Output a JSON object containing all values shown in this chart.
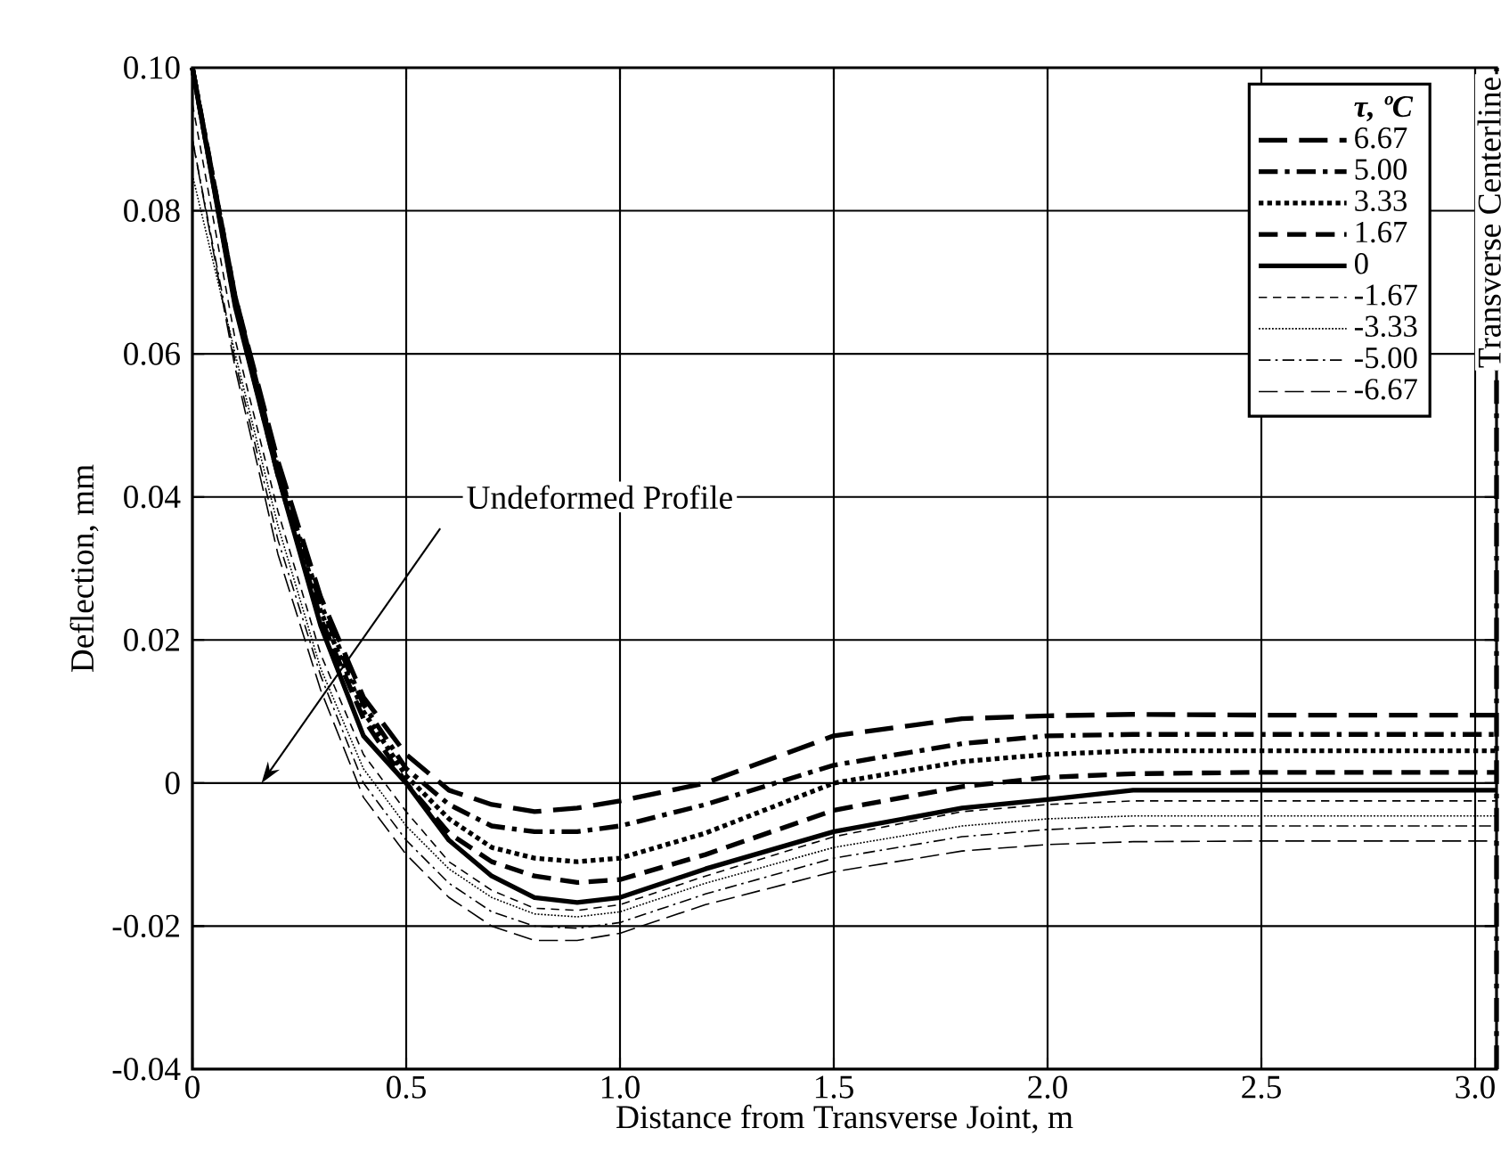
{
  "chart_data": {
    "type": "line",
    "xlabel": "Distance from Transverse Joint, m",
    "ylabel": "Deflection, mm",
    "legend_title": "τ, ºC",
    "x": [
      0,
      0.1,
      0.2,
      0.3,
      0.4,
      0.5,
      0.6,
      0.7,
      0.8,
      0.9,
      1.0,
      1.2,
      1.5,
      1.8,
      2.0,
      2.2,
      2.5,
      3.0,
      3.05
    ],
    "series": [
      {
        "name": "6.67",
        "color": "#000000",
        "line_style": "long dashed",
        "values": [
          0.1,
          0.068,
          0.045,
          0.026,
          0.012,
          0.004,
          -0.001,
          -0.003,
          -0.004,
          -0.0035,
          -0.0025,
          0.0,
          0.0066,
          0.009,
          0.0094,
          0.0096,
          0.0095,
          0.0095,
          0.0095
        ]
      },
      {
        "name": "5.00",
        "color": "#000000",
        "line_style": "dash dot",
        "values": [
          0.1,
          0.068,
          0.044,
          0.025,
          0.011,
          0.002,
          -0.003,
          -0.006,
          -0.0068,
          -0.0068,
          -0.006,
          -0.003,
          0.0025,
          0.0055,
          0.0066,
          0.0068,
          0.0068,
          0.0068,
          0.0068
        ]
      },
      {
        "name": "3.33",
        "color": "#000000",
        "line_style": "dotted",
        "values": [
          0.1,
          0.067,
          0.044,
          0.024,
          0.01,
          0.001,
          -0.005,
          -0.009,
          -0.0105,
          -0.011,
          -0.0105,
          -0.007,
          0.0,
          0.003,
          0.004,
          0.0045,
          0.0045,
          0.0045,
          0.0045
        ]
      },
      {
        "name": "1.67",
        "color": "#000000",
        "line_style": "dashed",
        "values": [
          0.1,
          0.067,
          0.043,
          0.023,
          0.009,
          0.0,
          -0.007,
          -0.011,
          -0.013,
          -0.0139,
          -0.0135,
          -0.01,
          -0.0038,
          -0.0005,
          0.0008,
          0.0013,
          0.0015,
          0.0015,
          0.0015
        ]
      },
      {
        "name": "0",
        "color": "#000000",
        "line_style": "solid",
        "values": [
          0.1,
          0.0666,
          0.043,
          0.022,
          0.0066,
          0.0,
          -0.008,
          -0.013,
          -0.016,
          -0.0167,
          -0.016,
          -0.012,
          -0.0068,
          -0.0035,
          -0.0023,
          -0.001,
          -0.001,
          -0.001,
          -0.001
        ]
      },
      {
        "name": "-1.67",
        "color": "#000000",
        "line_style": "fine dashed",
        "values": [
          0.095,
          0.062,
          0.038,
          0.018,
          0.004,
          -0.004,
          -0.011,
          -0.015,
          -0.0175,
          -0.0178,
          -0.017,
          -0.013,
          -0.0075,
          -0.004,
          -0.003,
          -0.0025,
          -0.0025,
          -0.0025,
          -0.0025
        ]
      },
      {
        "name": "-3.33",
        "color": "#000000",
        "line_style": "fine dotted",
        "values": [
          0.085,
          0.06,
          0.036,
          0.016,
          0.002,
          -0.006,
          -0.012,
          -0.016,
          -0.0183,
          -0.0187,
          -0.018,
          -0.014,
          -0.009,
          -0.006,
          -0.005,
          -0.0046,
          -0.0046,
          -0.0046,
          -0.0046
        ]
      },
      {
        "name": "-5.00",
        "color": "#000000",
        "line_style": "fine dash dot",
        "values": [
          0.09,
          0.059,
          0.034,
          0.015,
          0.0,
          -0.008,
          -0.014,
          -0.018,
          -0.02,
          -0.0203,
          -0.0195,
          -0.0155,
          -0.0105,
          -0.0075,
          -0.0065,
          -0.006,
          -0.006,
          -0.006,
          -0.006
        ]
      },
      {
        "name": "-6.67",
        "color": "#000000",
        "line_style": "fine long dashed",
        "values": [
          0.09,
          0.058,
          0.032,
          0.013,
          -0.002,
          -0.01,
          -0.016,
          -0.02,
          -0.022,
          -0.022,
          -0.021,
          -0.017,
          -0.0124,
          -0.0095,
          -0.0086,
          -0.0082,
          -0.0081,
          -0.0081,
          -0.0081
        ]
      }
    ],
    "xlim": [
      0,
      3.05
    ],
    "ylim": [
      -0.04,
      0.1
    ],
    "xticks": [
      0,
      0.5,
      {
        "value": 1,
        "label": "1.0"
      },
      1.5,
      {
        "value": 2,
        "label": "2.0"
      },
      2.5,
      {
        "value": 3,
        "label": "3.0"
      }
    ],
    "yticks": [
      -0.04,
      -0.02,
      0,
      0.02,
      0.04,
      0.06,
      0.08,
      {
        "value": 0.1,
        "label": "0.10"
      }
    ],
    "grid": true,
    "legend": "top right",
    "ref_lines": [
      {
        "axis": "x",
        "value": 3.05,
        "label": "Transverse Centerline",
        "line_style": "dashed",
        "color": "#000000"
      }
    ],
    "annotations": [
      "Undeformed Profile"
    ]
  }
}
